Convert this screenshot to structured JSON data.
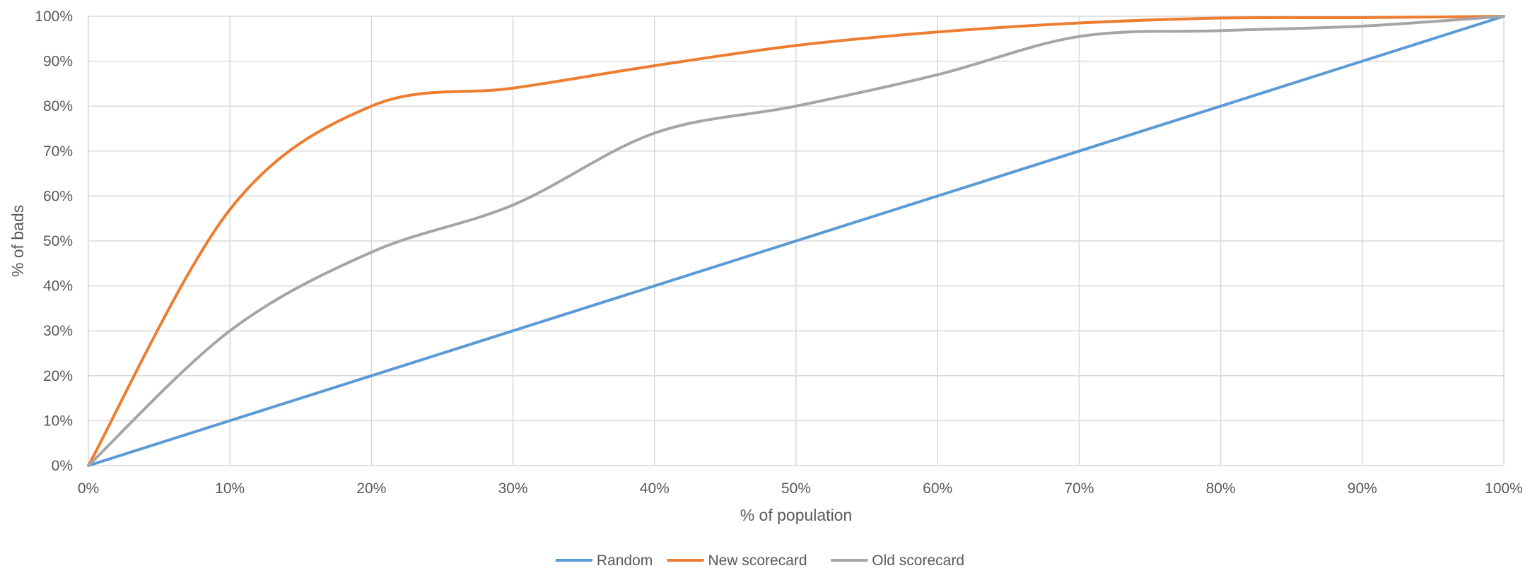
{
  "chart_data": {
    "type": "line",
    "title": "",
    "xlabel": "% of population",
    "ylabel": "% of bads",
    "xlim": [
      0,
      100
    ],
    "ylim": [
      0,
      100
    ],
    "x_ticks": [
      "0%",
      "10%",
      "20%",
      "30%",
      "40%",
      "50%",
      "60%",
      "70%",
      "80%",
      "90%",
      "100%"
    ],
    "y_ticks": [
      "0%",
      "10%",
      "20%",
      "30%",
      "40%",
      "50%",
      "60%",
      "70%",
      "80%",
      "90%",
      "100%"
    ],
    "grid": true,
    "legend_position": "bottom",
    "x": [
      0,
      10,
      20,
      30,
      40,
      50,
      60,
      70,
      80,
      90,
      100
    ],
    "series": [
      {
        "name": "Random",
        "color": "#5b9bd5",
        "values": [
          0,
          10,
          20,
          30,
          40,
          50,
          60,
          70,
          80,
          90,
          100
        ]
      },
      {
        "name": "New scorecard",
        "color": "#ed7d31",
        "values": [
          0,
          57,
          80,
          84,
          89,
          93.5,
          96.5,
          98.5,
          99.6,
          99.7,
          100
        ]
      },
      {
        "name": "Old scorecard",
        "color": "#a5a5a5",
        "values": [
          0,
          30,
          47.5,
          58,
          74,
          80,
          87,
          95.5,
          96.8,
          97.8,
          100
        ]
      }
    ]
  }
}
